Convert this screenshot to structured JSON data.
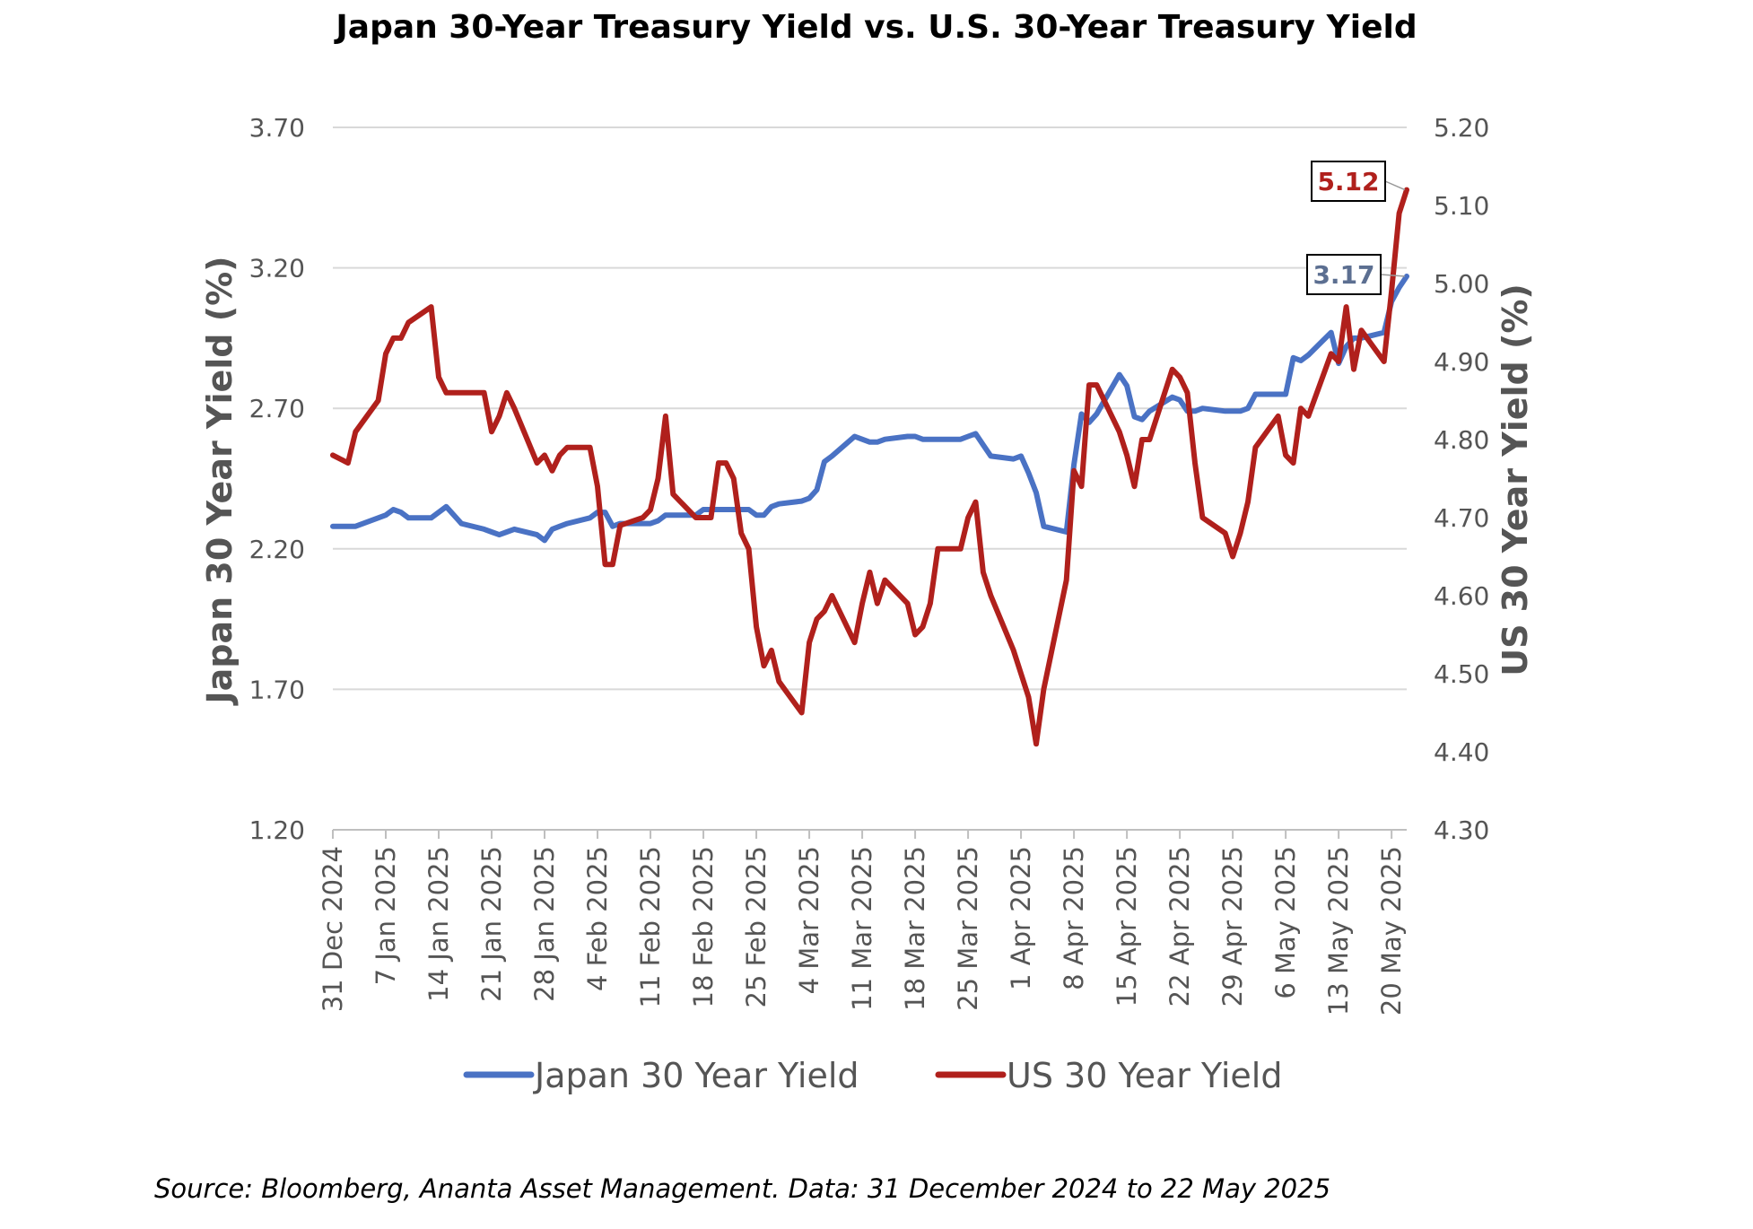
{
  "chart_data": {
    "type": "line",
    "title": "Japan 30-Year Treasury Yield vs. U.S. 30-Year Treasury Yield",
    "ylabel_left": "Japan 30 Year Yield (%)",
    "ylabel_right": "US 30 Year Yield (%)",
    "ylim_left": [
      1.2,
      3.7
    ],
    "ylim_right": [
      4.3,
      5.2
    ],
    "yticks_left": [
      "1.20",
      "1.70",
      "2.20",
      "2.70",
      "3.20",
      "3.70"
    ],
    "yticks_right": [
      "4.30",
      "4.40",
      "4.50",
      "4.60",
      "4.70",
      "4.80",
      "4.90",
      "5.00",
      "5.10",
      "5.20"
    ],
    "x_start": "2024-12-31",
    "x_end": "2025-05-22",
    "xticks": [
      {
        "date": "2024-12-31",
        "label": "31 Dec 2024"
      },
      {
        "date": "2025-01-07",
        "label": "7 Jan 2025"
      },
      {
        "date": "2025-01-14",
        "label": "14 Jan 2025"
      },
      {
        "date": "2025-01-21",
        "label": "21 Jan 2025"
      },
      {
        "date": "2025-01-28",
        "label": "28 Jan 2025"
      },
      {
        "date": "2025-02-04",
        "label": "4 Feb 2025"
      },
      {
        "date": "2025-02-11",
        "label": "11 Feb 2025"
      },
      {
        "date": "2025-02-18",
        "label": "18 Feb 2025"
      },
      {
        "date": "2025-02-25",
        "label": "25 Feb 2025"
      },
      {
        "date": "2025-03-04",
        "label": "4 Mar 2025"
      },
      {
        "date": "2025-03-11",
        "label": "11 Mar 2025"
      },
      {
        "date": "2025-03-18",
        "label": "18 Mar 2025"
      },
      {
        "date": "2025-03-25",
        "label": "25 Mar 2025"
      },
      {
        "date": "2025-04-01",
        "label": "1 Apr 2025"
      },
      {
        "date": "2025-04-08",
        "label": "8 Apr 2025"
      },
      {
        "date": "2025-04-15",
        "label": "15 Apr 2025"
      },
      {
        "date": "2025-04-22",
        "label": "22 Apr 2025"
      },
      {
        "date": "2025-04-29",
        "label": "29 Apr 2025"
      },
      {
        "date": "2025-05-06",
        "label": "6 May 2025"
      },
      {
        "date": "2025-05-13",
        "label": "13 May 2025"
      },
      {
        "date": "2025-05-20",
        "label": "20 May 2025"
      }
    ],
    "grid": true,
    "legend_position": "bottom",
    "series": [
      {
        "name": "Japan 30 Year Yield",
        "axis": "left",
        "color": "#4a72c4",
        "points": [
          [
            "2024-12-31",
            2.28
          ],
          [
            "2025-01-02",
            2.28
          ],
          [
            "2025-01-03",
            2.28
          ],
          [
            "2025-01-06",
            2.31
          ],
          [
            "2025-01-07",
            2.32
          ],
          [
            "2025-01-08",
            2.34
          ],
          [
            "2025-01-09",
            2.33
          ],
          [
            "2025-01-10",
            2.31
          ],
          [
            "2025-01-13",
            2.31
          ],
          [
            "2025-01-14",
            2.33
          ],
          [
            "2025-01-15",
            2.35
          ],
          [
            "2025-01-16",
            2.32
          ],
          [
            "2025-01-17",
            2.29
          ],
          [
            "2025-01-20",
            2.27
          ],
          [
            "2025-01-21",
            2.26
          ],
          [
            "2025-01-22",
            2.25
          ],
          [
            "2025-01-23",
            2.26
          ],
          [
            "2025-01-24",
            2.27
          ],
          [
            "2025-01-27",
            2.25
          ],
          [
            "2025-01-28",
            2.23
          ],
          [
            "2025-01-29",
            2.27
          ],
          [
            "2025-01-30",
            2.28
          ],
          [
            "2025-01-31",
            2.29
          ],
          [
            "2025-02-03",
            2.31
          ],
          [
            "2025-02-04",
            2.33
          ],
          [
            "2025-02-05",
            2.33
          ],
          [
            "2025-02-06",
            2.28
          ],
          [
            "2025-02-07",
            2.29
          ],
          [
            "2025-02-10",
            2.29
          ],
          [
            "2025-02-11",
            2.29
          ],
          [
            "2025-02-12",
            2.3
          ],
          [
            "2025-02-13",
            2.32
          ],
          [
            "2025-02-14",
            2.32
          ],
          [
            "2025-02-17",
            2.32
          ],
          [
            "2025-02-18",
            2.34
          ],
          [
            "2025-02-19",
            2.34
          ],
          [
            "2025-02-20",
            2.34
          ],
          [
            "2025-02-21",
            2.34
          ],
          [
            "2025-02-24",
            2.34
          ],
          [
            "2025-02-25",
            2.32
          ],
          [
            "2025-02-26",
            2.32
          ],
          [
            "2025-02-27",
            2.35
          ],
          [
            "2025-02-28",
            2.36
          ],
          [
            "2025-03-03",
            2.37
          ],
          [
            "2025-03-04",
            2.38
          ],
          [
            "2025-03-05",
            2.41
          ],
          [
            "2025-03-06",
            2.51
          ],
          [
            "2025-03-07",
            2.53
          ],
          [
            "2025-03-10",
            2.6
          ],
          [
            "2025-03-11",
            2.59
          ],
          [
            "2025-03-12",
            2.58
          ],
          [
            "2025-03-13",
            2.58
          ],
          [
            "2025-03-14",
            2.59
          ],
          [
            "2025-03-17",
            2.6
          ],
          [
            "2025-03-18",
            2.6
          ],
          [
            "2025-03-19",
            2.59
          ],
          [
            "2025-03-20",
            2.59
          ],
          [
            "2025-03-21",
            2.59
          ],
          [
            "2025-03-24",
            2.59
          ],
          [
            "2025-03-25",
            2.6
          ],
          [
            "2025-03-26",
            2.61
          ],
          [
            "2025-03-27",
            2.57
          ],
          [
            "2025-03-28",
            2.53
          ],
          [
            "2025-03-31",
            2.52
          ],
          [
            "2025-04-01",
            2.53
          ],
          [
            "2025-04-02",
            2.47
          ],
          [
            "2025-04-03",
            2.4
          ],
          [
            "2025-04-04",
            2.28
          ],
          [
            "2025-04-07",
            2.26
          ],
          [
            "2025-04-08",
            2.5
          ],
          [
            "2025-04-09",
            2.68
          ],
          [
            "2025-04-10",
            2.65
          ],
          [
            "2025-04-11",
            2.68
          ],
          [
            "2025-04-14",
            2.82
          ],
          [
            "2025-04-15",
            2.78
          ],
          [
            "2025-04-16",
            2.67
          ],
          [
            "2025-04-17",
            2.66
          ],
          [
            "2025-04-18",
            2.69
          ],
          [
            "2025-04-21",
            2.74
          ],
          [
            "2025-04-22",
            2.73
          ],
          [
            "2025-04-23",
            2.69
          ],
          [
            "2025-04-24",
            2.69
          ],
          [
            "2025-04-25",
            2.7
          ],
          [
            "2025-04-28",
            2.69
          ],
          [
            "2025-04-29",
            2.69
          ],
          [
            "2025-04-30",
            2.69
          ],
          [
            "2025-05-01",
            2.7
          ],
          [
            "2025-05-02",
            2.75
          ],
          [
            "2025-05-05",
            2.75
          ],
          [
            "2025-05-06",
            2.75
          ],
          [
            "2025-05-07",
            2.88
          ],
          [
            "2025-05-08",
            2.87
          ],
          [
            "2025-05-09",
            2.89
          ],
          [
            "2025-05-12",
            2.97
          ],
          [
            "2025-05-13",
            2.86
          ],
          [
            "2025-05-14",
            2.92
          ],
          [
            "2025-05-15",
            2.95
          ],
          [
            "2025-05-16",
            2.95
          ],
          [
            "2025-05-19",
            2.97
          ],
          [
            "2025-05-20",
            3.08
          ],
          [
            "2025-05-21",
            3.13
          ],
          [
            "2025-05-22",
            3.17
          ]
        ]
      },
      {
        "name": "US 30 Year Yield",
        "axis": "right",
        "color": "#b0201c",
        "points": [
          [
            "2024-12-31",
            4.78
          ],
          [
            "2025-01-02",
            4.77
          ],
          [
            "2025-01-03",
            4.81
          ],
          [
            "2025-01-06",
            4.85
          ],
          [
            "2025-01-07",
            4.91
          ],
          [
            "2025-01-08",
            4.93
          ],
          [
            "2025-01-09",
            4.93
          ],
          [
            "2025-01-10",
            4.95
          ],
          [
            "2025-01-13",
            4.97
          ],
          [
            "2025-01-14",
            4.88
          ],
          [
            "2025-01-15",
            4.86
          ],
          [
            "2025-01-16",
            4.86
          ],
          [
            "2025-01-17",
            4.86
          ],
          [
            "2025-01-20",
            4.86
          ],
          [
            "2025-01-21",
            4.81
          ],
          [
            "2025-01-22",
            4.83
          ],
          [
            "2025-01-23",
            4.86
          ],
          [
            "2025-01-24",
            4.84
          ],
          [
            "2025-01-27",
            4.77
          ],
          [
            "2025-01-28",
            4.78
          ],
          [
            "2025-01-29",
            4.76
          ],
          [
            "2025-01-30",
            4.78
          ],
          [
            "2025-01-31",
            4.79
          ],
          [
            "2025-02-03",
            4.79
          ],
          [
            "2025-02-04",
            4.74
          ],
          [
            "2025-02-05",
            4.64
          ],
          [
            "2025-02-06",
            4.64
          ],
          [
            "2025-02-07",
            4.69
          ],
          [
            "2025-02-10",
            4.7
          ],
          [
            "2025-02-11",
            4.71
          ],
          [
            "2025-02-12",
            4.75
          ],
          [
            "2025-02-13",
            4.83
          ],
          [
            "2025-02-14",
            4.73
          ],
          [
            "2025-02-17",
            4.7
          ],
          [
            "2025-02-18",
            4.7
          ],
          [
            "2025-02-19",
            4.7
          ],
          [
            "2025-02-20",
            4.77
          ],
          [
            "2025-02-21",
            4.77
          ],
          [
            "2025-02-22",
            4.75
          ],
          [
            "2025-02-23",
            4.68
          ],
          [
            "2025-02-24",
            4.66
          ],
          [
            "2025-02-25",
            4.56
          ],
          [
            "2025-02-26",
            4.51
          ],
          [
            "2025-02-27",
            4.53
          ],
          [
            "2025-02-28",
            4.49
          ],
          [
            "2025-03-03",
            4.45
          ],
          [
            "2025-03-04",
            4.54
          ],
          [
            "2025-03-05",
            4.57
          ],
          [
            "2025-03-06",
            4.58
          ],
          [
            "2025-03-07",
            4.6
          ],
          [
            "2025-03-10",
            4.54
          ],
          [
            "2025-03-11",
            4.59
          ],
          [
            "2025-03-12",
            4.63
          ],
          [
            "2025-03-13",
            4.59
          ],
          [
            "2025-03-14",
            4.62
          ],
          [
            "2025-03-17",
            4.59
          ],
          [
            "2025-03-18",
            4.55
          ],
          [
            "2025-03-19",
            4.56
          ],
          [
            "2025-03-20",
            4.59
          ],
          [
            "2025-03-21",
            4.66
          ],
          [
            "2025-03-24",
            4.66
          ],
          [
            "2025-03-25",
            4.7
          ],
          [
            "2025-03-26",
            4.72
          ],
          [
            "2025-03-27",
            4.63
          ],
          [
            "2025-03-28",
            4.6
          ],
          [
            "2025-03-31",
            4.53
          ],
          [
            "2025-04-01",
            4.5
          ],
          [
            "2025-04-02",
            4.47
          ],
          [
            "2025-04-03",
            4.41
          ],
          [
            "2025-04-04",
            4.48
          ],
          [
            "2025-04-07",
            4.62
          ],
          [
            "2025-04-08",
            4.76
          ],
          [
            "2025-04-09",
            4.74
          ],
          [
            "2025-04-10",
            4.87
          ],
          [
            "2025-04-11",
            4.87
          ],
          [
            "2025-04-14",
            4.81
          ],
          [
            "2025-04-15",
            4.78
          ],
          [
            "2025-04-16",
            4.74
          ],
          [
            "2025-04-17",
            4.8
          ],
          [
            "2025-04-18",
            4.8
          ],
          [
            "2025-04-21",
            4.89
          ],
          [
            "2025-04-22",
            4.88
          ],
          [
            "2025-04-23",
            4.86
          ],
          [
            "2025-04-24",
            4.77
          ],
          [
            "2025-04-25",
            4.7
          ],
          [
            "2025-04-28",
            4.68
          ],
          [
            "2025-04-29",
            4.65
          ],
          [
            "2025-04-30",
            4.68
          ],
          [
            "2025-05-01",
            4.72
          ],
          [
            "2025-05-02",
            4.79
          ],
          [
            "2025-05-05",
            4.83
          ],
          [
            "2025-05-06",
            4.78
          ],
          [
            "2025-05-07",
            4.77
          ],
          [
            "2025-05-08",
            4.84
          ],
          [
            "2025-05-09",
            4.83
          ],
          [
            "2025-05-12",
            4.91
          ],
          [
            "2025-05-13",
            4.9
          ],
          [
            "2025-05-14",
            4.97
          ],
          [
            "2025-05-15",
            4.89
          ],
          [
            "2025-05-16",
            4.94
          ],
          [
            "2025-05-19",
            4.9
          ],
          [
            "2025-05-20",
            4.99
          ],
          [
            "2025-05-21",
            5.09
          ],
          [
            "2025-05-22",
            5.12
          ]
        ]
      }
    ],
    "annotations": [
      {
        "label": "5.12",
        "series": "US 30 Year Yield",
        "color": "#b0201c"
      },
      {
        "label": "3.17",
        "series": "Japan 30 Year Yield",
        "color": "#5c6f91"
      }
    ]
  },
  "footer": {
    "source": "Source: Bloomberg, Ananta Asset Management. Data: 31 December 2024 to 22 May 2025"
  }
}
